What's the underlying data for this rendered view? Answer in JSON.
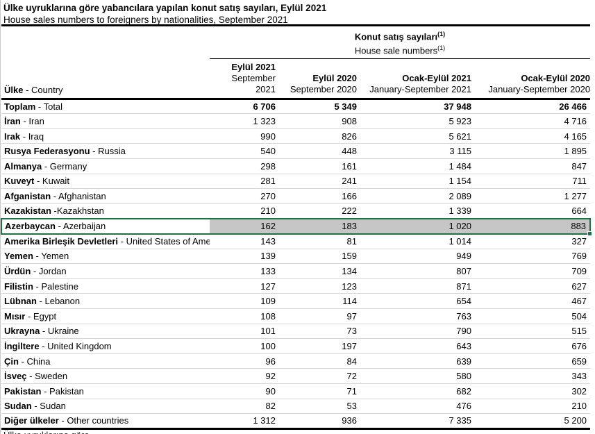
{
  "title": {
    "tr": "Ülke uyruklarına göre yabancılara yapılan konut satış sayıları, Eylül 2021",
    "en": "House sales numbers to foreigners by nationalities, September 2021"
  },
  "table": {
    "group_header": {
      "tr": "Konut satış sayıları",
      "en": "House sale numbers",
      "sup": "(1)"
    },
    "country_header": {
      "tr": "Ülke",
      "rest": " - Country"
    },
    "columns": [
      {
        "tr": "Eylül 2021",
        "en": "September 2021"
      },
      {
        "tr": "Eylül 2020",
        "en": "September 2020"
      },
      {
        "tr": "Ocak-Eylül 2021",
        "en": "January-September 2021"
      },
      {
        "tr": "Ocak-Eylül 2020",
        "en": "January-September 2020"
      }
    ],
    "rows": [
      {
        "tr": "Toplam",
        "sep": " - ",
        "en": "Total",
        "values": [
          "6 706",
          "5 349",
          "37 948",
          "26 466"
        ],
        "bold_values": true,
        "highlighted": false
      },
      {
        "tr": "İran",
        "sep": " - ",
        "en": "Iran",
        "values": [
          "1 323",
          "908",
          "5 923",
          "4 716"
        ],
        "bold_values": false,
        "highlighted": false
      },
      {
        "tr": "Irak",
        "sep": " - ",
        "en": "Iraq",
        "values": [
          "990",
          "826",
          "5 621",
          "4 165"
        ],
        "bold_values": false,
        "highlighted": false
      },
      {
        "tr": "Rusya Federasyonu",
        "sep": " - ",
        "en": "Russia",
        "values": [
          "540",
          "448",
          "3 115",
          "1 895"
        ],
        "bold_values": false,
        "highlighted": false
      },
      {
        "tr": "Almanya",
        "sep": " - ",
        "en": "Germany",
        "values": [
          "298",
          "161",
          "1 484",
          "847"
        ],
        "bold_values": false,
        "highlighted": false
      },
      {
        "tr": "Kuveyt",
        "sep": " - ",
        "en": "Kuwait",
        "values": [
          "281",
          "241",
          "1 154",
          "711"
        ],
        "bold_values": false,
        "highlighted": false
      },
      {
        "tr": "Afganistan",
        "sep": " - ",
        "en": "Afghanistan",
        "values": [
          "270",
          "166",
          "2 089",
          "1 277"
        ],
        "bold_values": false,
        "highlighted": false
      },
      {
        "tr": "Kazakistan",
        "sep": " -",
        "en": "Kazakhstan",
        "values": [
          "210",
          "222",
          "1 339",
          "664"
        ],
        "bold_values": false,
        "highlighted": false
      },
      {
        "tr": "Azerbaycan",
        "sep": " - ",
        "en": "Azerbaijan",
        "values": [
          "162",
          "183",
          "1 020",
          "883"
        ],
        "bold_values": false,
        "highlighted": true
      },
      {
        "tr": "Amerika Birleşik Devletleri",
        "sep": " - ",
        "en": "United States of America",
        "values": [
          "143",
          "81",
          "1 014",
          "327"
        ],
        "bold_values": false,
        "highlighted": false
      },
      {
        "tr": "Yemen",
        "sep": " - ",
        "en": "Yemen",
        "values": [
          "139",
          "159",
          "949",
          "769"
        ],
        "bold_values": false,
        "highlighted": false
      },
      {
        "tr": "Ürdün",
        "sep": " - ",
        "en": "Jordan",
        "values": [
          "133",
          "134",
          "807",
          "709"
        ],
        "bold_values": false,
        "highlighted": false
      },
      {
        "tr": "Filistin",
        "sep": " - ",
        "en": "Palestine",
        "values": [
          "127",
          "123",
          "871",
          "627"
        ],
        "bold_values": false,
        "highlighted": false
      },
      {
        "tr": "Lübnan",
        "sep": " - ",
        "en": "Lebanon",
        "values": [
          "109",
          "114",
          "654",
          "467"
        ],
        "bold_values": false,
        "highlighted": false
      },
      {
        "tr": "Mısır",
        "sep": " - ",
        "en": "Egypt",
        "values": [
          "108",
          "97",
          "763",
          "504"
        ],
        "bold_values": false,
        "highlighted": false
      },
      {
        "tr": "Ukrayna",
        "sep": " - ",
        "en": "Ukraine",
        "values": [
          "101",
          "73",
          "790",
          "515"
        ],
        "bold_values": false,
        "highlighted": false
      },
      {
        "tr": "İngiltere",
        "sep": " - ",
        "en": "United Kingdom",
        "values": [
          "100",
          "197",
          "643",
          "676"
        ],
        "bold_values": false,
        "highlighted": false
      },
      {
        "tr": "Çin",
        "sep": " - ",
        "en": "China",
        "values": [
          "96",
          "84",
          "639",
          "659"
        ],
        "bold_values": false,
        "highlighted": false
      },
      {
        "tr": "İsveç",
        "sep": " - ",
        "en": "Sweden",
        "values": [
          "92",
          "72",
          "580",
          "343"
        ],
        "bold_values": false,
        "highlighted": false
      },
      {
        "tr": "Pakistan",
        "sep": " - ",
        "en": "Pakistan",
        "values": [
          "90",
          "71",
          "682",
          "302"
        ],
        "bold_values": false,
        "highlighted": false
      },
      {
        "tr": "Sudan",
        "sep": " - ",
        "en": "Sudan",
        "values": [
          "82",
          "53",
          "476",
          "210"
        ],
        "bold_values": false,
        "highlighted": false
      },
      {
        "tr": "Diğer ülkeler",
        "sep": " - ",
        "en": "Other countries",
        "values": [
          "1 312",
          "936",
          "7 335",
          "5 200"
        ],
        "bold_values": false,
        "highlighted": false
      }
    ]
  },
  "highlight": {
    "border_color": "#1e7145",
    "fill_color": "#c6c6c6"
  },
  "footer": {
    "partial_text": "Ülke uyruklarına göre"
  }
}
